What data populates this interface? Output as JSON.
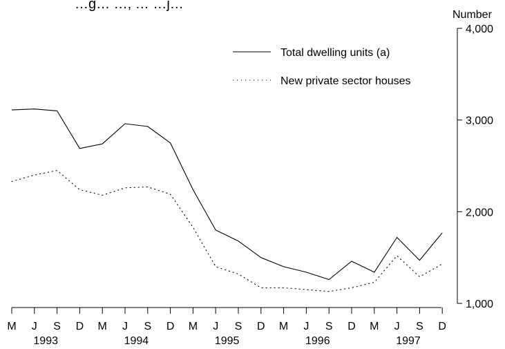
{
  "chart_data": {
    "type": "line",
    "title": "…g… …, … …j…",
    "ylabel": "Number",
    "ylim": [
      1000,
      4000
    ],
    "yticks": [
      1000,
      2000,
      3000,
      4000
    ],
    "ytick_labels": [
      "1,000",
      "2,000",
      "3,000",
      "4,000"
    ],
    "quarters": [
      "M",
      "J",
      "S",
      "D",
      "M",
      "J",
      "S",
      "D",
      "M",
      "J",
      "S",
      "D",
      "M",
      "J",
      "S",
      "D",
      "M",
      "J",
      "S",
      "D"
    ],
    "years": [
      {
        "label": "1993",
        "quarter_index": 1.5
      },
      {
        "label": "1994",
        "quarter_index": 5.5
      },
      {
        "label": "1995",
        "quarter_index": 9.5
      },
      {
        "label": "1996",
        "quarter_index": 13.5
      },
      {
        "label": "1997",
        "quarter_index": 17.5
      }
    ],
    "legend_position": "top-right",
    "series": [
      {
        "name": "Total dwelling units (a)",
        "style": "solid",
        "values": [
          3110,
          3120,
          3100,
          2690,
          2740,
          2960,
          2930,
          2750,
          2240,
          1800,
          1680,
          1500,
          1400,
          1340,
          1260,
          1460,
          1340,
          1720,
          1470,
          1770
        ]
      },
      {
        "name": "New private sector houses",
        "style": "dotted",
        "values": [
          2330,
          2400,
          2450,
          2240,
          2180,
          2260,
          2270,
          2190,
          1830,
          1400,
          1320,
          1170,
          1170,
          1150,
          1130,
          1170,
          1230,
          1520,
          1290,
          1430
        ]
      }
    ],
    "colors": {
      "line": "#000000",
      "background": "#ffffff"
    }
  }
}
